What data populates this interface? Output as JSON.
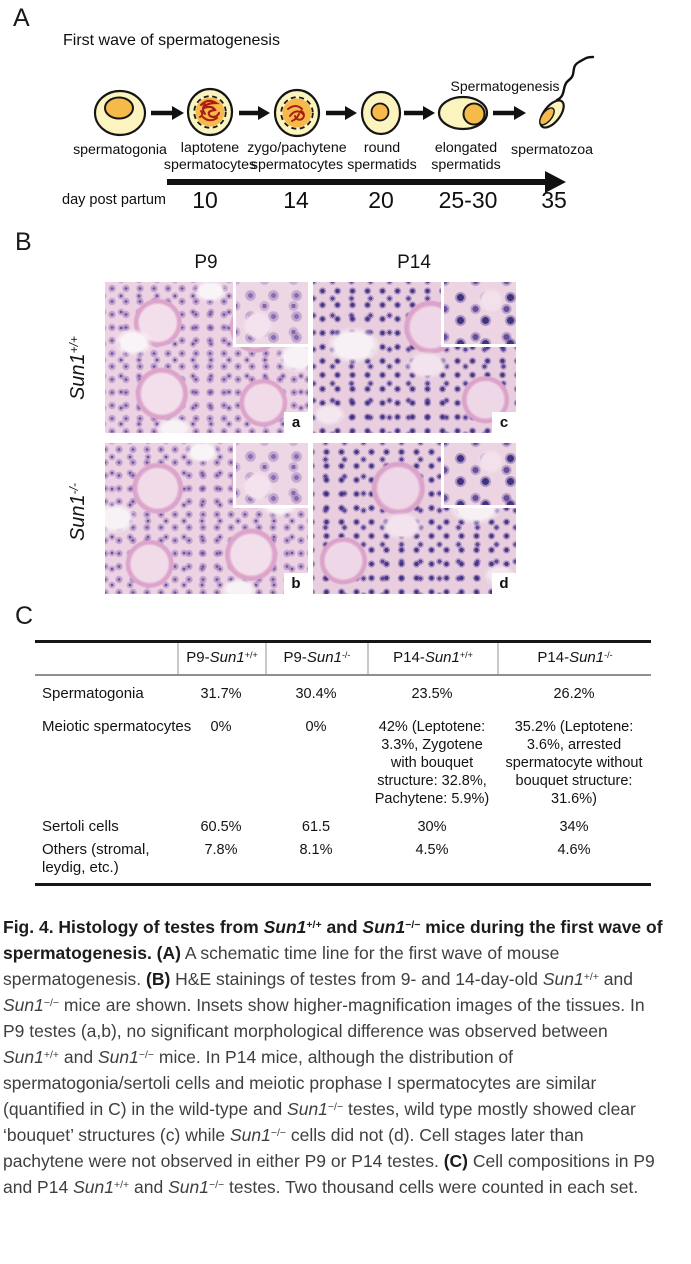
{
  "panel_a": {
    "label": "A",
    "title": "First wave of spermatogenesis",
    "annotation": "Spermatogenesis",
    "stages": [
      {
        "lines": [
          "spermatogonia"
        ]
      },
      {
        "lines": [
          "laptotene",
          "spermatocytes"
        ]
      },
      {
        "lines": [
          "zygo/pachytene",
          "spermatocytes"
        ]
      },
      {
        "lines": [
          "round",
          "spermatids"
        ]
      },
      {
        "lines": [
          "elongated",
          "spermatids"
        ]
      },
      {
        "lines": [
          "spermatozoa"
        ]
      }
    ],
    "axis_label": "day post partum",
    "days": [
      "10",
      "14",
      "20",
      "25-30",
      "35"
    ],
    "colors": {
      "cell_body": "#fcf4bf",
      "nucleus": "#f6ba4b",
      "chromatin": "#a81e15",
      "outline": "#151515"
    }
  },
  "panel_b": {
    "label": "B",
    "col_headers": [
      "P9",
      "P14"
    ],
    "row_headers": [
      [
        {
          "t": "Sun1",
          "i": true
        },
        {
          "t": "+/+",
          "sup": true
        }
      ],
      [
        {
          "t": "Sun1",
          "i": true
        },
        {
          "t": "-/-",
          "sup": true
        }
      ]
    ],
    "image_letters": [
      "a",
      "c",
      "b",
      "d"
    ],
    "stain_colors": {
      "eosin_pink": "#ecd2e2",
      "hematoxylin_purple": "#5b3e8e"
    }
  },
  "panel_c": {
    "label": "C",
    "columns": [
      [
        {
          "t": "P9-"
        },
        {
          "t": "Sun1",
          "i": true
        },
        {
          "t": "+/+",
          "sup": true
        }
      ],
      [
        {
          "t": "P9-"
        },
        {
          "t": "Sun1",
          "i": true
        },
        {
          "t": "-/-",
          "sup": true
        }
      ],
      [
        {
          "t": "P14-"
        },
        {
          "t": "Sun1",
          "i": true
        },
        {
          "t": "+/+",
          "sup": true
        }
      ],
      [
        {
          "t": "P14-"
        },
        {
          "t": "Sun1",
          "i": true
        },
        {
          "t": "-/-",
          "sup": true
        }
      ]
    ],
    "rows": [
      {
        "label": "Spermatogonia",
        "values": [
          "31.7%",
          "30.4%",
          "23.5%",
          "26.2%"
        ]
      },
      {
        "label": "Meiotic spermatocytes",
        "values": [
          "0%",
          "0%",
          "42% (Leptotene: 3.3%, Zygotene with bouquet structure: 32.8%, Pachytene: 5.9%)",
          "35.2% (Leptotene: 3.6%, arrested spermatocyte without bouquet structure: 31.6%)"
        ]
      },
      {
        "label": "Sertoli cells",
        "values": [
          "60.5%",
          "61.5",
          "30%",
          "34%"
        ]
      },
      {
        "label": "Others (stromal, leydig, etc.)",
        "values": [
          "7.8%",
          "8.1%",
          "4.5%",
          "4.6%"
        ]
      }
    ]
  },
  "chart_data": {
    "type": "table",
    "columns": [
      "",
      "P9-Sun1+/+",
      "P9-Sun1-/-",
      "P14-Sun1+/+",
      "P14-Sun1-/-"
    ],
    "rows": [
      [
        "Spermatogonia",
        "31.7%",
        "30.4%",
        "23.5%",
        "26.2%"
      ],
      [
        "Meiotic spermatocytes",
        "0%",
        "0%",
        "42% (Leptotene: 3.3%, Zygotene with bouquet structure: 32.8%, Pachytene: 5.9%)",
        "35.2% (Leptotene: 3.6%, arrested spermatocyte without bouquet structure: 31.6%)"
      ],
      [
        "Sertoli cells",
        "60.5%",
        "61.5",
        "30%",
        "34%"
      ],
      [
        "Others (stromal, leydig, etc.)",
        "7.8%",
        "8.1%",
        "4.5%",
        "4.6%"
      ]
    ]
  },
  "caption": {
    "segments": [
      {
        "t": "Fig. 4. Histology of testes from ",
        "b": true
      },
      {
        "t": "Sun1",
        "b": true,
        "i": true
      },
      {
        "t": "+/+",
        "b": true,
        "sup": true
      },
      {
        "t": " and ",
        "b": true
      },
      {
        "t": "Sun1",
        "b": true,
        "i": true
      },
      {
        "t": "−/−",
        "b": true,
        "sup": true
      },
      {
        "t": " mice during the first wave of spermatogenesis. ",
        "b": true
      },
      {
        "t": "(A)",
        "b": true
      },
      {
        "t": " A schematic time line for the first wave of mouse spermatogenesis. "
      },
      {
        "t": "(B)",
        "b": true
      },
      {
        "t": " H&E stainings of testes from 9- and 14-day-old "
      },
      {
        "t": "Sun1",
        "i": true
      },
      {
        "t": "+/+",
        "sup": true
      },
      {
        "t": " and "
      },
      {
        "t": "Sun1",
        "i": true
      },
      {
        "t": "−/−",
        "sup": true
      },
      {
        "t": " mice are shown. Insets show higher-magnification images of the tissues. In P9 testes (a,b), no significant morphological difference was observed between "
      },
      {
        "t": "Sun1",
        "i": true
      },
      {
        "t": "+/+",
        "sup": true
      },
      {
        "t": " and "
      },
      {
        "t": "Sun1",
        "i": true
      },
      {
        "t": "−/−",
        "sup": true
      },
      {
        "t": " mice. In P14 mice, although the distribution of spermatogonia/sertoli cells and meiotic prophase I spermatocytes are similar (quantified in C) in the wild-type and "
      },
      {
        "t": "Sun1",
        "i": true
      },
      {
        "t": "−/−",
        "sup": true
      },
      {
        "t": " testes, wild type mostly showed clear ‘bouquet’ structures (c) while "
      },
      {
        "t": "Sun1",
        "i": true
      },
      {
        "t": "−/−",
        "sup": true
      },
      {
        "t": " cells did not (d). Cell stages later than pachytene were not observed in either P9 or P14 testes. "
      },
      {
        "t": "(C)",
        "b": true
      },
      {
        "t": " Cell compositions in P9 and P14 "
      },
      {
        "t": "Sun1",
        "i": true
      },
      {
        "t": "+/+",
        "sup": true
      },
      {
        "t": " and "
      },
      {
        "t": "Sun1",
        "i": true
      },
      {
        "t": "−/−",
        "sup": true
      },
      {
        "t": " testes. Two thousand cells were counted in each set."
      }
    ]
  }
}
